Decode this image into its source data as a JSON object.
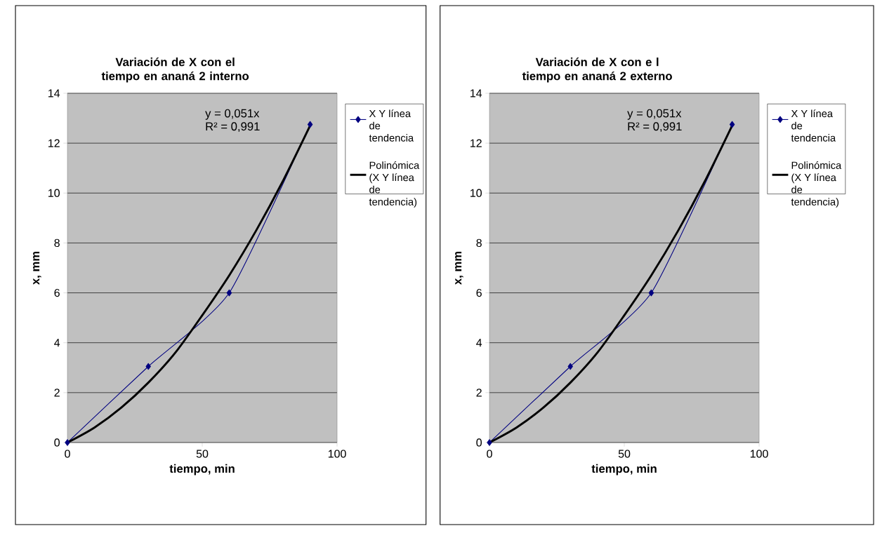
{
  "chart_data": [
    {
      "type": "line",
      "title": "Variación de X con el tiempo en ananá 2 interno",
      "xlabel": "tiempo, min",
      "ylabel": "x, mm",
      "series": [
        {
          "name": "X Y línea de tendencia",
          "color": "#000080",
          "marker": "diamond",
          "x": [
            0,
            30,
            60,
            90
          ],
          "values": [
            0,
            3.05,
            6,
            12.75
          ]
        },
        {
          "name": "Polinómica (X Y línea de tendencia)",
          "color": "#000000",
          "marker": "none",
          "x": [
            0,
            10,
            20,
            30,
            40,
            50,
            60,
            70,
            80,
            90
          ],
          "values": [
            0,
            0.6,
            1.4,
            2.4,
            3.6,
            5.1,
            6.7,
            8.5,
            10.5,
            12.7
          ]
        }
      ],
      "xlim": [
        0,
        100
      ],
      "xticks": [
        0,
        50,
        100
      ],
      "ylim": [
        0,
        14
      ],
      "yticks": [
        0,
        2,
        4,
        6,
        8,
        10,
        12,
        14
      ],
      "grid": "y",
      "legend": "right",
      "annotations": [
        "y = 0,051x",
        "R² = 0,991"
      ]
    },
    {
      "type": "line",
      "title": "Variación de X con e l tiempo en ananá 2 externo",
      "xlabel": "tiempo, min",
      "ylabel": "x, mm",
      "series": [
        {
          "name": "X Y línea de tendencia",
          "color": "#000080",
          "marker": "diamond",
          "x": [
            0,
            30,
            60,
            90
          ],
          "values": [
            0,
            3.05,
            6,
            12.75
          ]
        },
        {
          "name": "Polinómica (X Y línea de tendencia)",
          "color": "#000000",
          "marker": "none",
          "x": [
            0,
            10,
            20,
            30,
            40,
            50,
            60,
            70,
            80,
            90
          ],
          "values": [
            0,
            0.6,
            1.4,
            2.4,
            3.6,
            5.1,
            6.7,
            8.5,
            10.5,
            12.7
          ]
        }
      ],
      "xlim": [
        0,
        100
      ],
      "xticks": [
        0,
        50,
        100
      ],
      "ylim": [
        0,
        14
      ],
      "yticks": [
        0,
        2,
        4,
        6,
        8,
        10,
        12,
        14
      ],
      "grid": "y",
      "legend": "right",
      "annotations": [
        "y = 0,051x",
        "R² = 0,991"
      ]
    }
  ]
}
